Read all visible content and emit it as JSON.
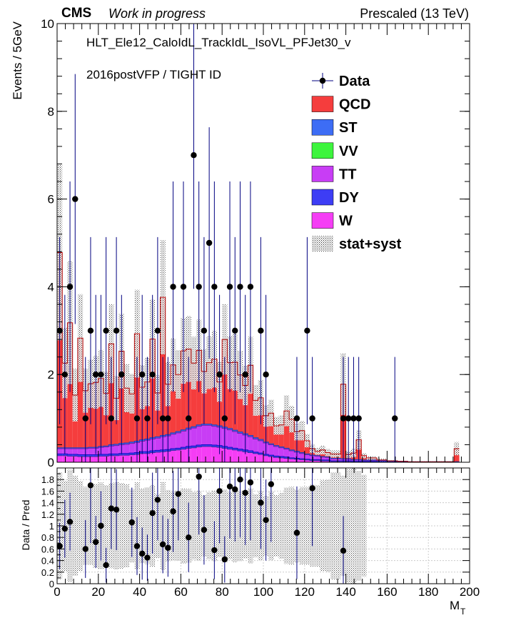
{
  "header": {
    "experiment": "CMS",
    "status": "Work in progress",
    "energy": "Prescaled (13 TeV)"
  },
  "annotations": {
    "trigger": "HLT_Ele12_CaloIdL_TrackIdL_IsoVL_PFJet30_v",
    "selection": "2016postVFP / TIGHT ID"
  },
  "colors": {
    "QCD": "#f53d3d",
    "ST": "#3d6df5",
    "VV": "#3df53d",
    "TT": "#c83df5",
    "DY": "#3d3df5",
    "W": "#f53df5",
    "data": "#000000",
    "errorbar": "#000080"
  },
  "chart_data": [
    {
      "type": "bar",
      "subtype": "stacked-histogram",
      "xlabel": "M_T",
      "ylabel": "Events / 5GeV",
      "xlim": [
        0,
        200
      ],
      "ylim": [
        0,
        10
      ],
      "x_ticks": [
        0,
        20,
        40,
        60,
        80,
        100,
        120,
        140,
        160,
        180,
        200
      ],
      "y_ticks": [
        0,
        2,
        4,
        6,
        8,
        10
      ],
      "bin_width": 2.5,
      "legend": {
        "placement": "top-right",
        "entries": [
          "Data",
          "QCD",
          "ST",
          "VV",
          "TT",
          "DY",
          "W",
          "stat+syst"
        ]
      },
      "bin_lo": [
        0,
        2.5,
        5,
        7.5,
        10,
        12.5,
        15,
        17.5,
        20,
        22.5,
        25,
        27.5,
        30,
        32.5,
        35,
        37.5,
        40,
        42.5,
        45,
        47.5,
        50,
        52.5,
        55,
        57.5,
        60,
        62.5,
        65,
        67.5,
        70,
        72.5,
        75,
        77.5,
        80,
        82.5,
        85,
        87.5,
        90,
        92.5,
        95,
        97.5,
        100,
        102.5,
        105,
        107.5,
        110,
        112.5,
        115,
        117.5,
        120,
        122.5,
        125,
        127.5,
        130,
        132.5,
        135,
        137.5,
        140,
        142.5,
        145,
        147.5,
        150,
        155,
        160,
        165,
        170,
        175,
        180,
        185,
        190,
        192.5
      ],
      "series": [
        {
          "name": "W",
          "values": [
            0.15,
            0.15,
            0.14,
            0.14,
            0.13,
            0.13,
            0.13,
            0.13,
            0.14,
            0.14,
            0.15,
            0.15,
            0.16,
            0.16,
            0.17,
            0.18,
            0.2,
            0.2,
            0.22,
            0.23,
            0.24,
            0.25,
            0.27,
            0.28,
            0.3,
            0.32,
            0.33,
            0.35,
            0.36,
            0.36,
            0.35,
            0.34,
            0.32,
            0.3,
            0.28,
            0.26,
            0.24,
            0.22,
            0.2,
            0.18,
            0.15,
            0.13,
            0.11,
            0.1,
            0.09,
            0.08,
            0.07,
            0.06,
            0.05,
            0.04,
            0.04,
            0.03,
            0.03,
            0.02,
            0.02,
            0.02,
            0.02,
            0.01,
            0.01,
            0.01,
            0.01,
            0.01,
            0.01,
            0.01,
            0,
            0,
            0,
            0,
            0,
            0
          ]
        },
        {
          "name": "DY",
          "values": [
            0.04,
            0.04,
            0.04,
            0.04,
            0.04,
            0.04,
            0.04,
            0.04,
            0.04,
            0.04,
            0.04,
            0.04,
            0.04,
            0.04,
            0.04,
            0.04,
            0.04,
            0.04,
            0.04,
            0.04,
            0.04,
            0.04,
            0.04,
            0.04,
            0.04,
            0.04,
            0.04,
            0.04,
            0.04,
            0.04,
            0.04,
            0.04,
            0.04,
            0.04,
            0.04,
            0.04,
            0.04,
            0.04,
            0.03,
            0.03,
            0.03,
            0.03,
            0.03,
            0.03,
            0.03,
            0.02,
            0.02,
            0.02,
            0.02,
            0.02,
            0.02,
            0.02,
            0.02,
            0.01,
            0.01,
            0.01,
            0.01,
            0.01,
            0.01,
            0.01,
            0.01,
            0.01,
            0,
            0,
            0,
            0,
            0,
            0,
            0,
            0
          ]
        },
        {
          "name": "TT",
          "values": [
            0.12,
            0.12,
            0.13,
            0.13,
            0.14,
            0.14,
            0.15,
            0.15,
            0.16,
            0.17,
            0.18,
            0.19,
            0.2,
            0.21,
            0.22,
            0.23,
            0.24,
            0.26,
            0.27,
            0.28,
            0.3,
            0.31,
            0.33,
            0.35,
            0.37,
            0.39,
            0.41,
            0.43,
            0.44,
            0.44,
            0.43,
            0.42,
            0.41,
            0.4,
            0.38,
            0.36,
            0.34,
            0.32,
            0.3,
            0.28,
            0.26,
            0.24,
            0.22,
            0.2,
            0.18,
            0.16,
            0.14,
            0.12,
            0.1,
            0.09,
            0.08,
            0.07,
            0.06,
            0.05,
            0.05,
            0.04,
            0.04,
            0.03,
            0.03,
            0.02,
            0.02,
            0.02,
            0.02,
            0.01,
            0.01,
            0.01,
            0.01,
            0.01,
            0.01,
            0.01
          ]
        },
        {
          "name": "VV",
          "values": [
            0,
            0,
            0,
            0,
            0,
            0,
            0,
            0,
            0,
            0,
            0,
            0,
            0,
            0,
            0,
            0,
            0,
            0,
            0,
            0,
            0,
            0,
            0,
            0,
            0,
            0,
            0,
            0,
            0,
            0,
            0,
            0,
            0,
            0,
            0,
            0,
            0,
            0,
            0,
            0,
            0,
            0,
            0,
            0,
            0,
            0,
            0,
            0,
            0,
            0,
            0,
            0,
            0,
            0,
            0,
            0,
            0,
            0,
            0,
            0,
            0,
            0,
            0,
            0,
            0,
            0,
            0,
            0,
            0,
            0
          ]
        },
        {
          "name": "ST",
          "values": [
            0.02,
            0.02,
            0.02,
            0.02,
            0.02,
            0.02,
            0.02,
            0.02,
            0.02,
            0.02,
            0.03,
            0.03,
            0.03,
            0.03,
            0.03,
            0.03,
            0.03,
            0.03,
            0.03,
            0.03,
            0.03,
            0.03,
            0.03,
            0.03,
            0.03,
            0.03,
            0.03,
            0.03,
            0.03,
            0.03,
            0.03,
            0.03,
            0.03,
            0.03,
            0.03,
            0.03,
            0.03,
            0.03,
            0.03,
            0.03,
            0.02,
            0.02,
            0.02,
            0.02,
            0.02,
            0.02,
            0.02,
            0.02,
            0.02,
            0.01,
            0.01,
            0.01,
            0.01,
            0.01,
            0.01,
            0.01,
            0.01,
            0.01,
            0.01,
            0.01,
            0.01,
            0.01,
            0,
            0,
            0,
            0,
            0,
            0,
            0,
            0
          ]
        },
        {
          "name": "QCD",
          "values": [
            4.45,
            1.93,
            2.85,
            1.2,
            2.5,
            1.3,
            1.45,
            1.48,
            1.55,
            1.2,
            2.3,
            1.05,
            2.1,
            1.25,
            1.1,
            2.45,
            1.2,
            1.3,
            2.25,
            1.0,
            3.15,
            1.15,
            1.55,
            1.3,
            1.8,
            1.8,
            1.45,
            1.7,
            1.2,
            1.4,
            1.5,
            1.0,
            2.0,
            1.5,
            1.55,
            1.3,
            1.1,
            1.6,
            0.85,
            0.95,
            0.6,
            0.7,
            0.45,
            0.5,
            0.85,
            0.7,
            0.45,
            0.5,
            0.3,
            0.15,
            0.1,
            0.15,
            0.1,
            0.1,
            0.1,
            1.7,
            0.1,
            0.15,
            0.45,
            0.1,
            0.05,
            0,
            0,
            0,
            0,
            0,
            0,
            0,
            0,
            0.3
          ]
        }
      ],
      "uncertainty": [
        2.0,
        0.8,
        1.4,
        0.6,
        1.0,
        0.5,
        0.55,
        0.6,
        0.65,
        0.5,
        0.9,
        0.5,
        0.85,
        0.55,
        0.45,
        1.0,
        0.5,
        0.55,
        0.9,
        0.4,
        1.3,
        0.5,
        0.6,
        0.55,
        0.75,
        0.75,
        0.6,
        0.7,
        0.5,
        0.6,
        0.65,
        0.45,
        0.8,
        0.6,
        0.65,
        0.55,
        0.45,
        0.65,
        0.35,
        0.4,
        0.25,
        0.3,
        0.2,
        0.22,
        0.35,
        0.3,
        0.2,
        0.22,
        0.15,
        0.1,
        0.08,
        0.1,
        0.08,
        0.08,
        0.08,
        0.7,
        0.08,
        0.1,
        0.22,
        0.06,
        0.04,
        0.03,
        0.02,
        0.02,
        0.01,
        0.01,
        0.01,
        0.01,
        0.01,
        0.15
      ],
      "data_points": {
        "x": [
          1.25,
          3.75,
          6.25,
          8.75,
          13.75,
          16.25,
          18.75,
          21.25,
          23.75,
          26.25,
          28.75,
          31.25,
          38.75,
          41.25,
          43.75,
          46.25,
          48.75,
          51.25,
          53.75,
          56.25,
          61.25,
          63.75,
          66.25,
          68.75,
          71.25,
          73.75,
          76.25,
          78.75,
          81.25,
          83.75,
          86.25,
          88.75,
          91.25,
          93.75,
          98.75,
          101.25,
          116.25,
          121.25,
          123.75,
          138.75,
          141.25,
          143.75,
          146.25,
          163.75
        ],
        "y": [
          3,
          2,
          4,
          6,
          1,
          3,
          2,
          2,
          3,
          1,
          3,
          2,
          1,
          2,
          1,
          2,
          3,
          1,
          1,
          4,
          4,
          1,
          7,
          4,
          3,
          5,
          4,
          2,
          1,
          4,
          3,
          4,
          2,
          4,
          3,
          2,
          1,
          3,
          1,
          1,
          1,
          1,
          1,
          1
        ]
      }
    },
    {
      "type": "scatter",
      "subtype": "ratio",
      "xlabel": "M_T",
      "ylabel": "Data / Pred",
      "xlim": [
        0,
        200
      ],
      "ylim": [
        0,
        2
      ],
      "x_ticks": [
        0,
        20,
        40,
        60,
        80,
        100,
        120,
        140,
        160,
        180,
        200
      ],
      "y_ticks": [
        0,
        0.2,
        0.4,
        0.6,
        0.8,
        1,
        1.2,
        1.4,
        1.6,
        1.8
      ],
      "x": [
        1.25,
        3.75,
        6.25,
        13.75,
        16.25,
        18.75,
        21.25,
        23.75,
        26.25,
        28.75,
        36.25,
        38.75,
        41.25,
        43.75,
        46.25,
        48.75,
        51.25,
        53.75,
        56.25,
        58.75,
        63.75,
        68.75,
        71.25,
        76.25,
        78.75,
        81.25,
        83.75,
        86.25,
        88.75,
        91.25,
        93.75,
        98.75,
        101.25,
        103.75,
        116.25,
        123.75,
        138.75
      ],
      "y": [
        0.65,
        0.95,
        1.07,
        0.6,
        1.7,
        0.72,
        1.0,
        0.32,
        1.3,
        1.28,
        1.06,
        0.65,
        0.52,
        0.45,
        1.22,
        1.45,
        0.68,
        0.62,
        1.25,
        1.55,
        0.8,
        1.85,
        0.93,
        0.58,
        1.6,
        0.42,
        1.68,
        1.63,
        1.8,
        1.57,
        1.75,
        1.4,
        1.1,
        1.72,
        0.88,
        1.65,
        0.57
      ],
      "err": [
        0.4,
        0.5,
        0.5,
        0.5,
        1.0,
        0.45,
        0.6,
        0.3,
        0.7,
        0.7,
        0.6,
        0.5,
        0.45,
        0.4,
        0.7,
        0.7,
        0.5,
        0.5,
        0.7,
        0.8,
        0.6,
        1.0,
        0.6,
        0.5,
        0.9,
        0.4,
        0.9,
        0.9,
        1.0,
        0.9,
        1.0,
        0.8,
        0.7,
        1.0,
        0.8,
        1.0,
        0.6
      ]
    }
  ]
}
